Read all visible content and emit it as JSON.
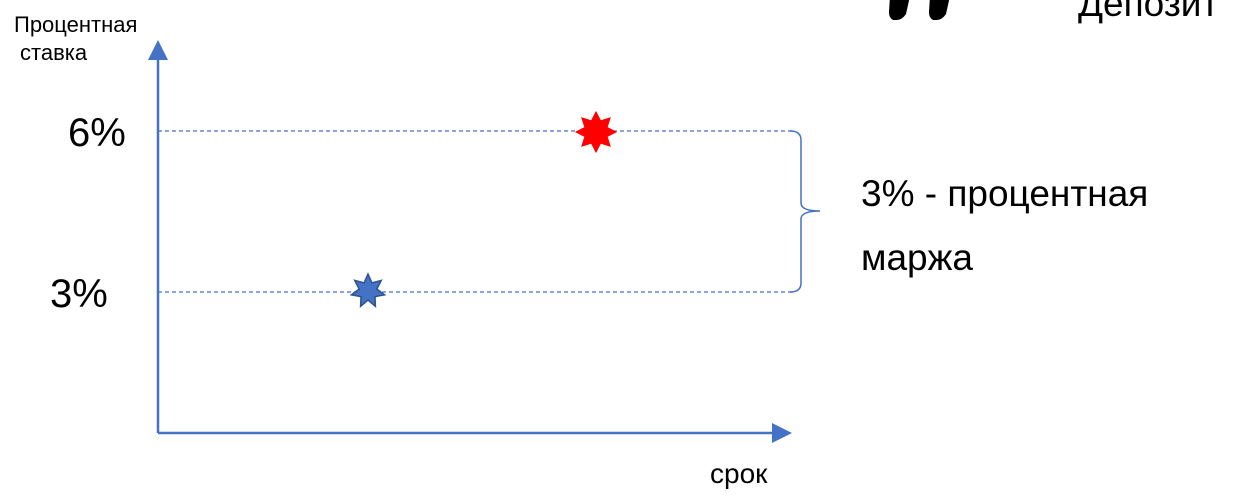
{
  "axes": {
    "y_title_line1": "Процентная",
    "y_title_line2": "ставка",
    "x_title": "срок",
    "axis_color": "#4472C4"
  },
  "levels": [
    {
      "label": "6%",
      "value": 6
    },
    {
      "label": "3%",
      "value": 3
    }
  ],
  "markers": [
    {
      "name": "high-rate",
      "value": 6,
      "color": "#FF0000",
      "stroke": "#FF0000"
    },
    {
      "name": "low-rate",
      "value": 3,
      "color": "#4472C4",
      "stroke": "#2F528F"
    }
  ],
  "annotation": {
    "line1": "3% - процентная",
    "line2": "маржа"
  },
  "top_clipped": {
    "text": "Депозит",
    "icon": "partial-shapes-icon"
  },
  "colors": {
    "guide_line": "#4472C4",
    "brace": "#4472C4"
  }
}
